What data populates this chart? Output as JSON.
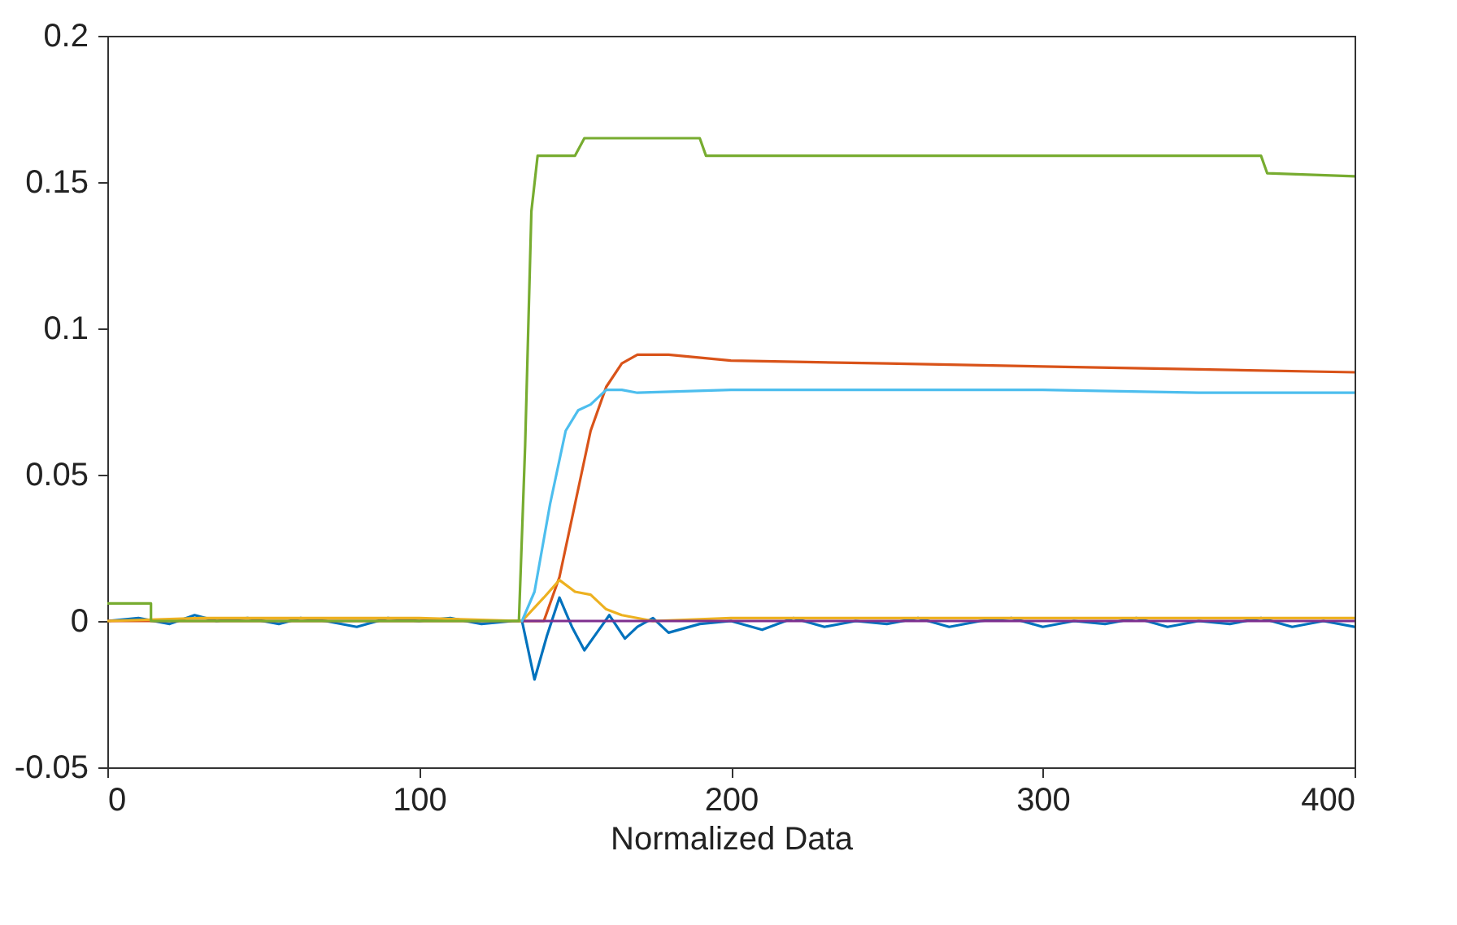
{
  "chart_data": {
    "type": "line",
    "xlabel": "Normalized Data",
    "xlim": [
      0,
      400
    ],
    "xticks": [
      0,
      100,
      200,
      300,
      400
    ],
    "ylim": [
      -0.05,
      0.2
    ],
    "yticks": [
      -0.05,
      0,
      0.05,
      0.1,
      0.15,
      0.2
    ],
    "grid": false,
    "series": [
      {
        "color": "#0072bd",
        "x": [
          0,
          10,
          20,
          28,
          35,
          45,
          55,
          62,
          70,
          80,
          90,
          100,
          110,
          120,
          130,
          133,
          137,
          141,
          145,
          149,
          153,
          157,
          161,
          166,
          170,
          175,
          180,
          190,
          200,
          210,
          220,
          230,
          240,
          250,
          260,
          270,
          280,
          290,
          300,
          310,
          320,
          330,
          340,
          350,
          360,
          370,
          380,
          390,
          400
        ],
        "values": [
          0,
          0.001,
          -0.001,
          0.002,
          0,
          0.001,
          -0.001,
          0.001,
          0,
          -0.002,
          0.001,
          0,
          0.001,
          -0.001,
          0,
          0,
          -0.02,
          -0.005,
          0.008,
          -0.002,
          -0.01,
          -0.004,
          0.002,
          -0.006,
          -0.002,
          0.001,
          -0.004,
          -0.001,
          0,
          -0.003,
          0.001,
          -0.002,
          0,
          -0.001,
          0.001,
          -0.002,
          0,
          0.001,
          -0.002,
          0,
          -0.001,
          0.001,
          -0.002,
          0,
          -0.001,
          0.001,
          -0.002,
          0,
          -0.002
        ]
      },
      {
        "color": "#d95319",
        "x": [
          0,
          133,
          140,
          145,
          150,
          155,
          160,
          165,
          170,
          180,
          200,
          250,
          300,
          350,
          400
        ],
        "values": [
          0,
          0,
          0,
          0.015,
          0.04,
          0.065,
          0.08,
          0.088,
          0.091,
          0.091,
          0.089,
          0.088,
          0.087,
          0.086,
          0.085
        ]
      },
      {
        "color": "#edb120",
        "x": [
          0,
          30,
          60,
          100,
          133,
          140,
          145,
          150,
          155,
          160,
          165,
          175,
          200,
          250,
          300,
          350,
          400
        ],
        "values": [
          0,
          0.001,
          0.001,
          0.001,
          0,
          0.008,
          0.014,
          0.01,
          0.009,
          0.004,
          0.002,
          0,
          0.001,
          0.001,
          0.001,
          0.001,
          0.001
        ]
      },
      {
        "color": "#7e2f8e",
        "x": [
          133,
          400
        ],
        "values": [
          0,
          0
        ]
      },
      {
        "color": "#4dbeee",
        "x": [
          133,
          137,
          142,
          147,
          151,
          155,
          160,
          165,
          170,
          200,
          250,
          300,
          350,
          400
        ],
        "values": [
          0,
          0.01,
          0.04,
          0.065,
          0.072,
          0.074,
          0.079,
          0.079,
          0.078,
          0.079,
          0.079,
          0.079,
          0.078,
          0.078
        ]
      },
      {
        "color": "#77ac30",
        "x": [
          0,
          14,
          14,
          132,
          134,
          136,
          138,
          150,
          153,
          190,
          192,
          370,
          372,
          400
        ],
        "values": [
          0.006,
          0.006,
          0,
          0,
          0.06,
          0.14,
          0.159,
          0.159,
          0.165,
          0.165,
          0.159,
          0.159,
          0.153,
          0.152
        ]
      }
    ]
  }
}
